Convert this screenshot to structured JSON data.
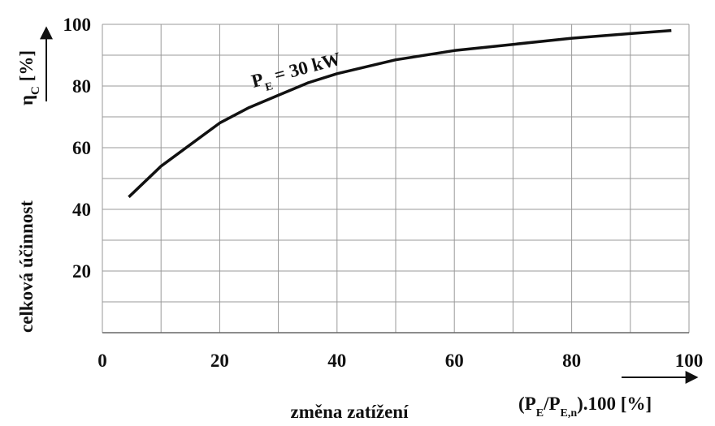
{
  "chart_data": {
    "type": "line",
    "annotation": [
      "P",
      "E",
      " = 30 kW"
    ],
    "ylabel": "celková  účinnost",
    "ylabel_symbol": [
      "η",
      "C",
      " [%]"
    ],
    "xlabel": "změna zatížení",
    "xlabel_right": [
      "(P",
      "E",
      "/P",
      "E,n",
      ").100 [%]"
    ],
    "x": [
      4.5,
      10,
      15,
      20,
      25,
      30,
      35,
      40,
      50,
      60,
      70,
      80,
      90,
      97
    ],
    "values": [
      44,
      54,
      61,
      68,
      73,
      77,
      81,
      84,
      88.5,
      91.5,
      93.5,
      95.5,
      97,
      98
    ],
    "color": "#111111",
    "xlim": [
      0,
      100
    ],
    "ylim": [
      0,
      100
    ],
    "xticks": [
      0,
      20,
      40,
      60,
      80,
      100
    ],
    "yticks": [
      20,
      40,
      60,
      80,
      100
    ],
    "xminorticks": [
      10,
      30,
      50,
      70,
      90
    ],
    "yminorticks": [
      10,
      30,
      50,
      70,
      90
    ],
    "grid": true
  }
}
